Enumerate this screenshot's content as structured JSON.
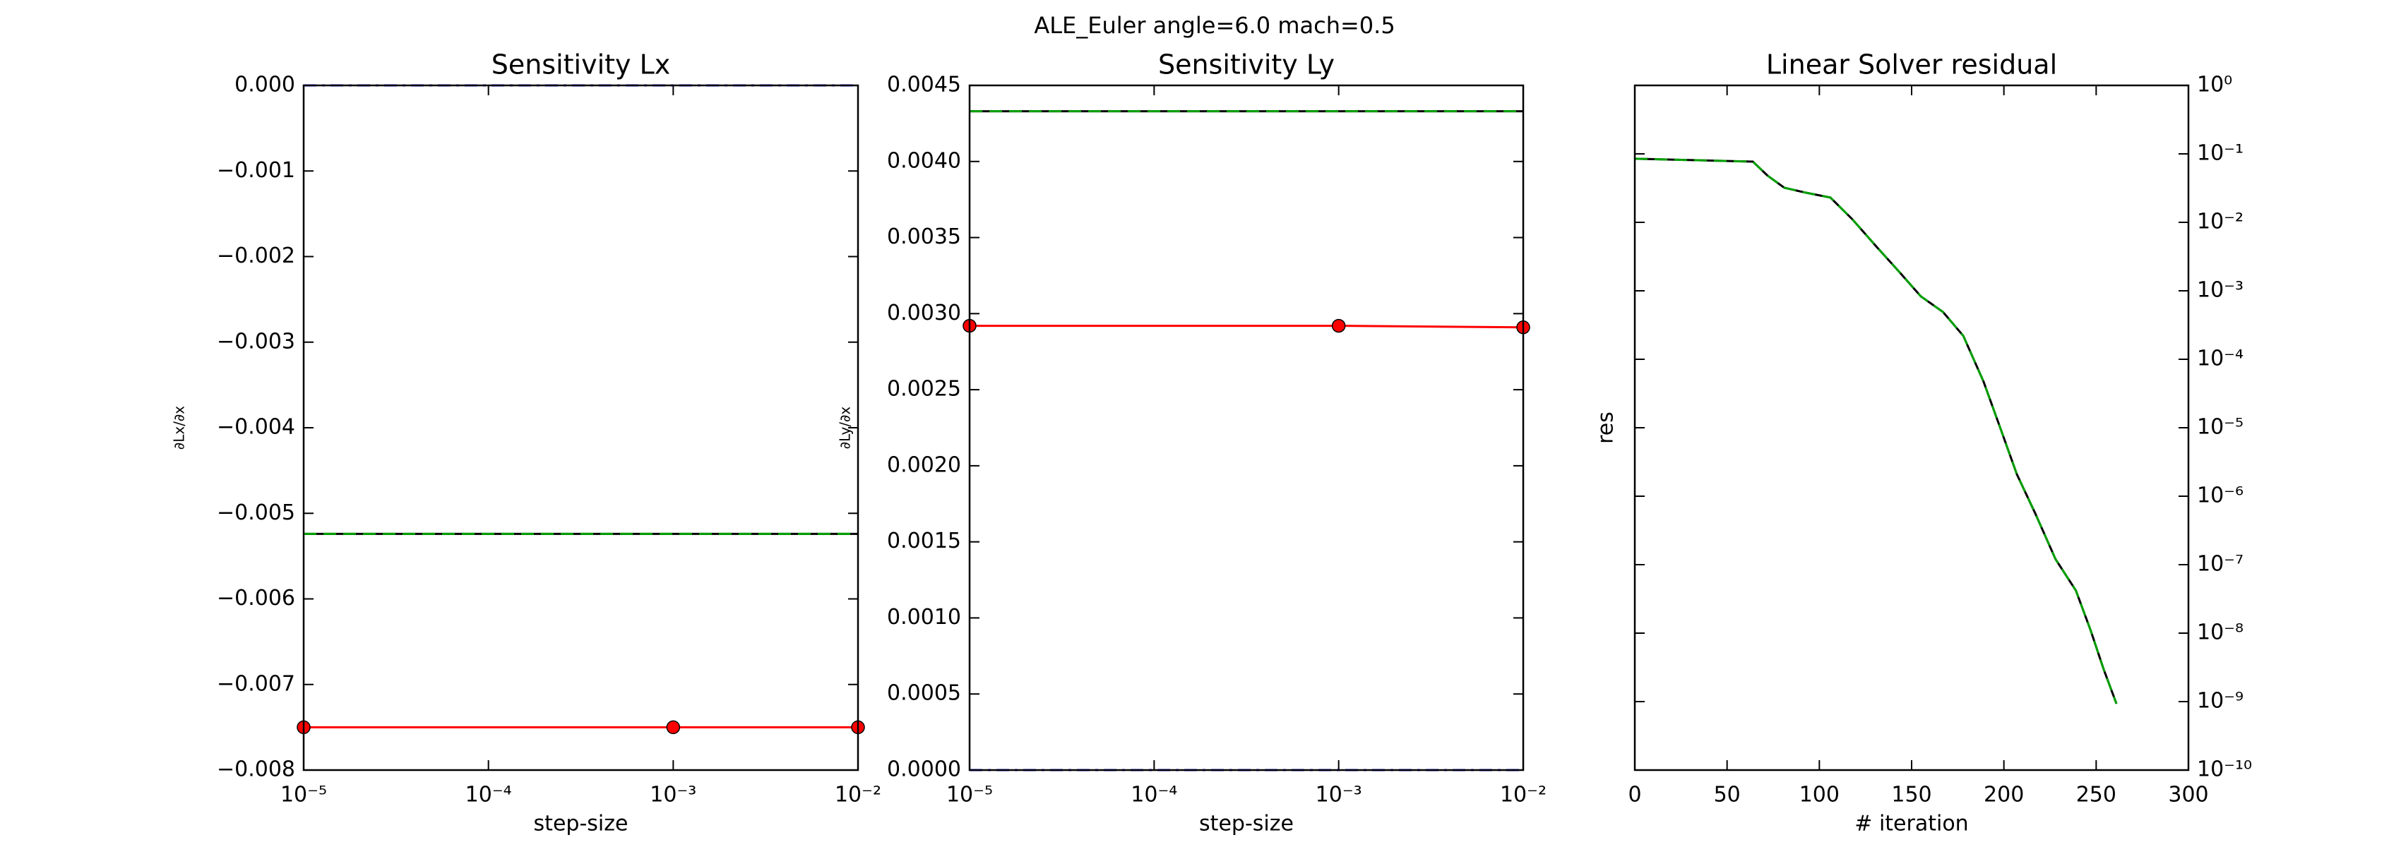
{
  "suptitle": "ALE_Euler  angle=6.0 mach=0.5",
  "chart_data": [
    {
      "type": "line",
      "title": "Sensitivity Lx",
      "xlabel": "step-size",
      "ylabel": "∂Lx/∂x",
      "xscale": "log",
      "x": [
        1e-05,
        0.001,
        0.01
      ],
      "xlim": [
        1e-05,
        0.01
      ],
      "xticks": [
        {
          "value": 1e-05,
          "label": "10⁻⁵"
        },
        {
          "value": 0.0001,
          "label": "10⁻⁴"
        },
        {
          "value": 0.001,
          "label": "10⁻³"
        },
        {
          "value": 0.01,
          "label": "10⁻²"
        }
      ],
      "ylim": [
        -0.008,
        0
      ],
      "yticks": [
        {
          "value": -0.008,
          "label": "−0.008"
        },
        {
          "value": -0.007,
          "label": "−0.007"
        },
        {
          "value": -0.006,
          "label": "−0.006"
        },
        {
          "value": -0.005,
          "label": "−0.005"
        },
        {
          "value": -0.004,
          "label": "−0.004"
        },
        {
          "value": -0.003,
          "label": "−0.003"
        },
        {
          "value": -0.002,
          "label": "−0.002"
        },
        {
          "value": -0.001,
          "label": "−0.001"
        },
        {
          "value": 0,
          "label": "0.000"
        }
      ],
      "series": [
        {
          "color": "#ff0000",
          "style": "solid",
          "marker": "o",
          "values": [
            -0.0075,
            -0.0075,
            -0.0075
          ]
        },
        {
          "color": "#000000",
          "style": "solid",
          "values": [
            -0.00524,
            -0.00524,
            -0.00524
          ]
        },
        {
          "color": "#00a000",
          "style": "dashed",
          "values": [
            -0.00524,
            -0.00524,
            -0.00524
          ]
        },
        {
          "color": "#0000ff",
          "style": "dashdot",
          "values": [
            0,
            0,
            0
          ]
        }
      ]
    },
    {
      "type": "line",
      "title": "Sensitivity Ly",
      "xlabel": "step-size",
      "ylabel": "∂Ly/∂x",
      "xscale": "log",
      "x": [
        1e-05,
        0.001,
        0.01
      ],
      "xlim": [
        1e-05,
        0.01
      ],
      "xticks": [
        {
          "value": 1e-05,
          "label": "10⁻⁵"
        },
        {
          "value": 0.0001,
          "label": "10⁻⁴"
        },
        {
          "value": 0.001,
          "label": "10⁻³"
        },
        {
          "value": 0.01,
          "label": "10⁻²"
        }
      ],
      "ylim": [
        0,
        0.0045
      ],
      "yticks": [
        {
          "value": 0,
          "label": "0.0000"
        },
        {
          "value": 0.0005,
          "label": "0.0005"
        },
        {
          "value": 0.001,
          "label": "0.0010"
        },
        {
          "value": 0.0015,
          "label": "0.0015"
        },
        {
          "value": 0.002,
          "label": "0.0020"
        },
        {
          "value": 0.0025,
          "label": "0.0025"
        },
        {
          "value": 0.003,
          "label": "0.0030"
        },
        {
          "value": 0.0035,
          "label": "0.0035"
        },
        {
          "value": 0.004,
          "label": "0.0040"
        },
        {
          "value": 0.0045,
          "label": "0.0045"
        }
      ],
      "series": [
        {
          "color": "#ff0000",
          "style": "solid",
          "marker": "o",
          "values": [
            0.00292,
            0.00292,
            0.00291
          ]
        },
        {
          "color": "#000000",
          "style": "solid",
          "values": [
            0.00433,
            0.00433,
            0.00433
          ]
        },
        {
          "color": "#00a000",
          "style": "dashed",
          "values": [
            0.00433,
            0.00433,
            0.00433
          ]
        },
        {
          "color": "#0000ff",
          "style": "dashdot",
          "values": [
            0,
            0,
            0
          ]
        }
      ]
    },
    {
      "type": "line",
      "title": "Linear Solver residual",
      "xlabel": "# iteration",
      "ylabel": "res",
      "yscale": "log",
      "yaxis_side": "right",
      "x": [
        0,
        64,
        72,
        81,
        93,
        106,
        118,
        131,
        144,
        155,
        167,
        178,
        189,
        198,
        207,
        217,
        228,
        239,
        247,
        254,
        261
      ],
      "xlim": [
        0,
        300
      ],
      "xticks": [
        0,
        50,
        100,
        150,
        200,
        250,
        300
      ],
      "ylim": [
        1e-10,
        1
      ],
      "yticks": [
        {
          "value": 1e-10,
          "label": "10⁻¹⁰"
        },
        {
          "value": 1e-09,
          "label": "10⁻⁹"
        },
        {
          "value": 1e-08,
          "label": "10⁻⁸"
        },
        {
          "value": 1e-07,
          "label": "10⁻⁷"
        },
        {
          "value": 1e-06,
          "label": "10⁻⁶"
        },
        {
          "value": 1e-05,
          "label": "10⁻⁵"
        },
        {
          "value": 0.0001,
          "label": "10⁻⁴"
        },
        {
          "value": 0.001,
          "label": "10⁻³"
        },
        {
          "value": 0.01,
          "label": "10⁻²"
        },
        {
          "value": 0.1,
          "label": "10⁻¹"
        },
        {
          "value": 1,
          "label": "10⁰"
        }
      ],
      "series": [
        {
          "color": "#000000",
          "style": "solid",
          "values": [
            0.085,
            0.077,
            0.048,
            0.032,
            0.027,
            0.023,
            0.011,
            0.0044,
            0.0018,
            0.00083,
            0.00049,
            0.00022,
            4.7e-05,
            1e-05,
            2.1e-06,
            5.6e-07,
            1.2e-07,
            4.2e-08,
            1.1e-08,
            3e-09,
            9.3e-10
          ]
        },
        {
          "color": "#00a000",
          "style": "dashed",
          "values": [
            0.085,
            0.077,
            0.048,
            0.032,
            0.027,
            0.023,
            0.011,
            0.0044,
            0.0018,
            0.00083,
            0.00049,
            0.00022,
            4.7e-05,
            1e-05,
            2.1e-06,
            5.6e-07,
            1.2e-07,
            4.2e-08,
            1.1e-08,
            3e-09,
            9.3e-10
          ]
        }
      ]
    }
  ]
}
